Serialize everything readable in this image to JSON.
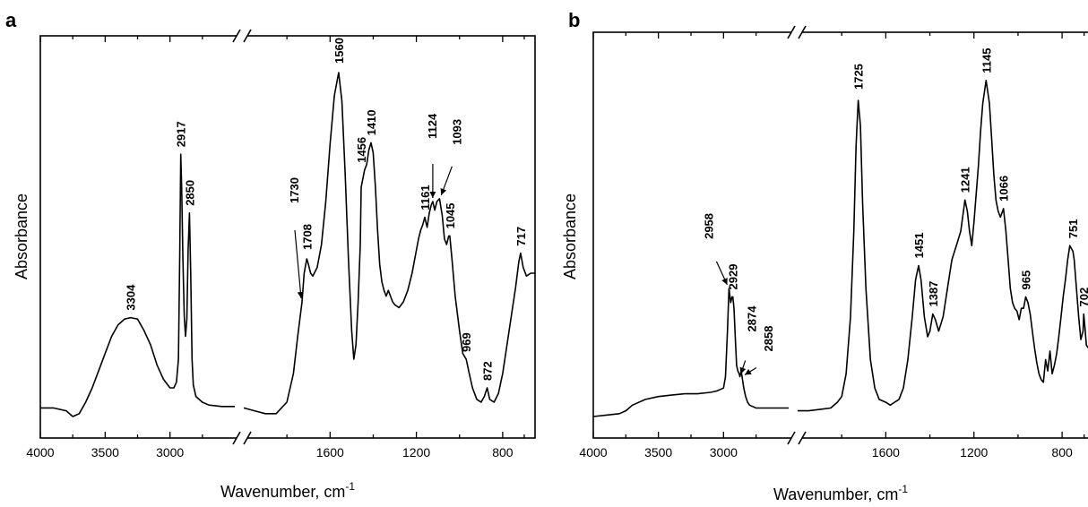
{
  "chart_data": [
    {
      "type": "line",
      "panel_label": "a",
      "xlabel": "Wavenumber, cm",
      "xlabel_sup": "-1",
      "ylabel": "Absorbance",
      "x_tick_labels": [
        "4000",
        "3500",
        "3000",
        "1600",
        "1200",
        "800"
      ],
      "x_segments": [
        [
          4000,
          2500
        ],
        [
          2000,
          650
        ]
      ],
      "axis_break": "x between 2500 and 2000",
      "grid": false,
      "series": [
        {
          "x": [
            4000,
            3900,
            3800,
            3750,
            3700,
            3650,
            3600,
            3550,
            3500,
            3450,
            3400,
            3350,
            3304,
            3250,
            3200,
            3150,
            3100,
            3050,
            3000,
            2970,
            2950,
            2935,
            2925,
            2917,
            2910,
            2900,
            2890,
            2880,
            2870,
            2860,
            2850,
            2840,
            2830,
            2820,
            2800,
            2750,
            2700,
            2600,
            2500
          ],
          "y": [
            0.03,
            0.03,
            0.02,
            0.0,
            0.01,
            0.05,
            0.1,
            0.16,
            0.22,
            0.28,
            0.32,
            0.34,
            0.345,
            0.34,
            0.3,
            0.25,
            0.18,
            0.13,
            0.1,
            0.1,
            0.12,
            0.2,
            0.55,
            0.915,
            0.8,
            0.55,
            0.35,
            0.28,
            0.34,
            0.58,
            0.71,
            0.5,
            0.2,
            0.11,
            0.07,
            0.05,
            0.04,
            0.035,
            0.035
          ]
        },
        {
          "x": [
            2000,
            1950,
            1900,
            1850,
            1800,
            1770,
            1750,
            1730,
            1720,
            1708,
            1700,
            1690,
            1680,
            1660,
            1640,
            1620,
            1600,
            1580,
            1560,
            1545,
            1530,
            1515,
            1500,
            1490,
            1480,
            1470,
            1460,
            1456,
            1440,
            1430,
            1420,
            1410,
            1400,
            1390,
            1380,
            1370,
            1360,
            1350,
            1340,
            1330,
            1320,
            1310,
            1300,
            1280,
            1260,
            1240,
            1220,
            1200,
            1190,
            1180,
            1170,
            1161,
            1150,
            1140,
            1130,
            1124,
            1115,
            1105,
            1093,
            1080,
            1070,
            1060,
            1050,
            1045,
            1035,
            1020,
            1000,
            985,
            969,
            955,
            940,
            920,
            900,
            885,
            872,
            860,
            840,
            820,
            800,
            780,
            760,
            740,
            725,
            717,
            705,
            690,
            670,
            650
          ],
          "y": [
            0.03,
            0.02,
            0.01,
            0.01,
            0.05,
            0.15,
            0.28,
            0.4,
            0.5,
            0.55,
            0.53,
            0.5,
            0.49,
            0.52,
            0.6,
            0.75,
            0.95,
            1.12,
            1.2,
            1.1,
            0.85,
            0.55,
            0.3,
            0.2,
            0.25,
            0.4,
            0.6,
            0.8,
            0.86,
            0.88,
            0.93,
            0.955,
            0.92,
            0.8,
            0.65,
            0.53,
            0.47,
            0.44,
            0.42,
            0.44,
            0.42,
            0.4,
            0.39,
            0.38,
            0.4,
            0.44,
            0.5,
            0.58,
            0.62,
            0.65,
            0.67,
            0.695,
            0.66,
            0.71,
            0.74,
            0.75,
            0.72,
            0.75,
            0.76,
            0.7,
            0.62,
            0.6,
            0.63,
            0.63,
            0.55,
            0.42,
            0.3,
            0.22,
            0.2,
            0.15,
            0.1,
            0.06,
            0.05,
            0.07,
            0.1,
            0.06,
            0.05,
            0.08,
            0.15,
            0.25,
            0.35,
            0.45,
            0.54,
            0.57,
            0.52,
            0.49,
            0.5,
            0.5
          ]
        }
      ],
      "peak_labels": [
        {
          "text": "3304",
          "x": 3304,
          "y": 0.345
        },
        {
          "text": "2917",
          "x": 2917,
          "y": 0.915
        },
        {
          "text": "2850",
          "x": 2850,
          "y": 0.71
        },
        {
          "text": "1730",
          "x": 1730,
          "y": 0.4,
          "arrow": true
        },
        {
          "text": "1708",
          "x": 1708,
          "y": 0.55
        },
        {
          "text": "1560",
          "x": 1560,
          "y": 1.2
        },
        {
          "text": "1456",
          "x": 1456,
          "y": 0.86
        },
        {
          "text": "1410",
          "x": 1410,
          "y": 0.955
        },
        {
          "text": "1161",
          "x": 1161,
          "y": 0.695
        },
        {
          "text": "1124",
          "x": 1124,
          "y": 0.75,
          "arrow": true
        },
        {
          "text": "1093",
          "x": 1093,
          "y": 0.76,
          "arrow": true
        },
        {
          "text": "1045",
          "x": 1045,
          "y": 0.63
        },
        {
          "text": "969",
          "x": 969,
          "y": 0.2
        },
        {
          "text": "872",
          "x": 872,
          "y": 0.1
        },
        {
          "text": "717",
          "x": 717,
          "y": 0.57
        }
      ]
    },
    {
      "type": "line",
      "panel_label": "b",
      "xlabel": "Wavenumber, cm",
      "xlabel_sup": "-1",
      "ylabel": "Absorbance",
      "x_tick_labels": [
        "4000",
        "3500",
        "3000",
        "1600",
        "1200",
        "800"
      ],
      "x_segments": [
        [
          4000,
          2500
        ],
        [
          2000,
          650
        ]
      ],
      "axis_break": "x between 2500 and 2000",
      "grid": false,
      "series": [
        {
          "x": [
            4000,
            3900,
            3800,
            3750,
            3700,
            3600,
            3500,
            3400,
            3300,
            3200,
            3100,
            3050,
            3000,
            2985,
            2970,
            2958,
            2945,
            2935,
            2929,
            2920,
            2910,
            2900,
            2890,
            2880,
            2874,
            2865,
            2858,
            2845,
            2830,
            2815,
            2800,
            2750,
            2700,
            2600,
            2500
          ],
          "y": [
            0.0,
            0.005,
            0.01,
            0.02,
            0.04,
            0.06,
            0.07,
            0.075,
            0.08,
            0.08,
            0.085,
            0.09,
            0.1,
            0.14,
            0.3,
            0.45,
            0.4,
            0.42,
            0.42,
            0.38,
            0.28,
            0.18,
            0.16,
            0.15,
            0.14,
            0.16,
            0.14,
            0.1,
            0.07,
            0.05,
            0.04,
            0.03,
            0.03,
            0.03,
            0.03
          ]
        },
        {
          "x": [
            2000,
            1950,
            1900,
            1850,
            1820,
            1800,
            1780,
            1760,
            1745,
            1735,
            1725,
            1715,
            1705,
            1690,
            1670,
            1650,
            1630,
            1600,
            1580,
            1560,
            1540,
            1520,
            1500,
            1480,
            1465,
            1451,
            1440,
            1425,
            1410,
            1400,
            1387,
            1375,
            1360,
            1340,
            1320,
            1300,
            1280,
            1260,
            1241,
            1230,
            1220,
            1210,
            1200,
            1190,
            1180,
            1170,
            1160,
            1145,
            1130,
            1120,
            1110,
            1100,
            1090,
            1080,
            1066,
            1055,
            1045,
            1035,
            1025,
            1015,
            1005,
            995,
            985,
            975,
            965,
            955,
            945,
            935,
            925,
            915,
            905,
            895,
            885,
            875,
            865,
            855,
            845,
            835,
            825,
            815,
            805,
            795,
            785,
            775,
            765,
            751,
            745,
            735,
            725,
            715,
            705,
            702,
            697,
            690,
            680,
            670,
            660,
            650
          ],
          "y": [
            0.02,
            0.02,
            0.025,
            0.03,
            0.05,
            0.07,
            0.15,
            0.35,
            0.65,
            0.95,
            1.11,
            1.02,
            0.75,
            0.45,
            0.2,
            0.1,
            0.06,
            0.05,
            0.04,
            0.05,
            0.06,
            0.1,
            0.2,
            0.35,
            0.48,
            0.53,
            0.48,
            0.35,
            0.28,
            0.3,
            0.36,
            0.34,
            0.3,
            0.35,
            0.45,
            0.55,
            0.6,
            0.65,
            0.76,
            0.72,
            0.65,
            0.6,
            0.68,
            0.78,
            0.88,
            1.0,
            1.1,
            1.18,
            1.1,
            0.98,
            0.85,
            0.76,
            0.72,
            0.7,
            0.73,
            0.65,
            0.55,
            0.45,
            0.4,
            0.38,
            0.37,
            0.34,
            0.38,
            0.38,
            0.42,
            0.4,
            0.36,
            0.3,
            0.24,
            0.19,
            0.15,
            0.13,
            0.12,
            0.2,
            0.16,
            0.23,
            0.15,
            0.18,
            0.22,
            0.28,
            0.35,
            0.42,
            0.48,
            0.55,
            0.6,
            0.58,
            0.55,
            0.45,
            0.35,
            0.27,
            0.3,
            0.36,
            0.32,
            0.25,
            0.24,
            0.26,
            0.25,
            0.26
          ]
        }
      ],
      "peak_labels": [
        {
          "text": "2958",
          "x": 2958,
          "y": 0.45,
          "arrow": true
        },
        {
          "text": "2929",
          "x": 2929,
          "y": 0.42
        },
        {
          "text": "2874",
          "x": 2874,
          "y": 0.14,
          "arrow": true
        },
        {
          "text": "2858",
          "x": 2858,
          "y": 0.14,
          "arrow": true
        },
        {
          "text": "1725",
          "x": 1725,
          "y": 1.11
        },
        {
          "text": "1451",
          "x": 1451,
          "y": 0.53
        },
        {
          "text": "1387",
          "x": 1387,
          "y": 0.36
        },
        {
          "text": "1241",
          "x": 1241,
          "y": 0.76
        },
        {
          "text": "1145",
          "x": 1145,
          "y": 1.18
        },
        {
          "text": "1066",
          "x": 1066,
          "y": 0.73
        },
        {
          "text": "965",
          "x": 965,
          "y": 0.42
        },
        {
          "text": "751",
          "x": 751,
          "y": 0.6
        },
        {
          "text": "702",
          "x": 702,
          "y": 0.36
        }
      ]
    }
  ]
}
